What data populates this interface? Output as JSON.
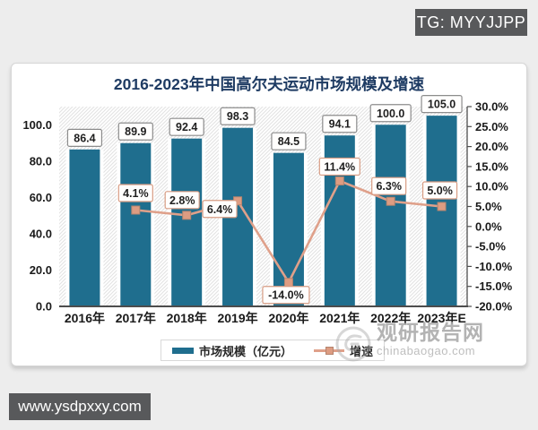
{
  "page": {
    "tg_badge": "TG: MYYJJPP",
    "site_badge": "www.ysdpxxy.com",
    "watermark_name": "观研报告网",
    "watermark_domain": "chinabaogao.com"
  },
  "chart_data": {
    "type": "bar",
    "subtype": "combo-bar-line",
    "title": "2016-2023年中国高尔夫运动市场规模及增速",
    "categories": [
      "2016年",
      "2017年",
      "2018年",
      "2019年",
      "2020年",
      "2021年",
      "2022年",
      "2023年E"
    ],
    "series": [
      {
        "name": "市场规模（亿元）",
        "type": "bar",
        "axis": "left",
        "color": "#1f6e8e",
        "values": [
          86.4,
          89.9,
          92.4,
          98.3,
          84.5,
          94.1,
          100.0,
          105.0
        ],
        "labels": [
          "86.4",
          "89.9",
          "92.4",
          "98.3",
          "84.5",
          "94.1",
          "100.0",
          "105.0"
        ]
      },
      {
        "name": "增速",
        "type": "line",
        "axis": "right",
        "color": "#dfa08a",
        "marker_color": "#dd9c82",
        "marker_border": "#b5846e",
        "values": [
          null,
          4.1,
          2.8,
          6.4,
          -14.0,
          11.4,
          6.3,
          5.0
        ],
        "labels": [
          null,
          "4.1%",
          "2.8%",
          "6.4%",
          "-14.0%",
          "11.4%",
          "6.3%",
          "5.0%"
        ],
        "label_offsets": [
          null,
          [
            0,
            -19
          ],
          [
            -5,
            -17
          ],
          [
            -20,
            9
          ],
          [
            -3,
            14
          ],
          [
            0,
            -16
          ],
          [
            -2,
            -17
          ],
          [
            -2,
            -18
          ]
        ]
      }
    ],
    "left_axis": {
      "min": 0,
      "max": 110,
      "tick_values": [
        100,
        80,
        60,
        40,
        20,
        0
      ],
      "tick_labels": [
        "100.0",
        "80.0",
        "60.0",
        "40.0",
        "20.0",
        "0.0"
      ]
    },
    "right_axis": {
      "min": -20,
      "max": 30,
      "tick_values": [
        30,
        25,
        20,
        15,
        10,
        5,
        0,
        -5,
        -10,
        -15,
        -20
      ],
      "tick_labels": [
        "30.0%",
        "25.0%",
        "20.0%",
        "15.0%",
        "10.0%",
        "5.0%",
        "0.0%",
        "-5.0%",
        "-10.0%",
        "-15.0%",
        "-20.0%"
      ]
    },
    "legend_position": "bottom",
    "plot_background": "diagonal-hatch",
    "label_box_border_bar": "#8c8c8c",
    "label_box_border_line": "#d89c83"
  }
}
